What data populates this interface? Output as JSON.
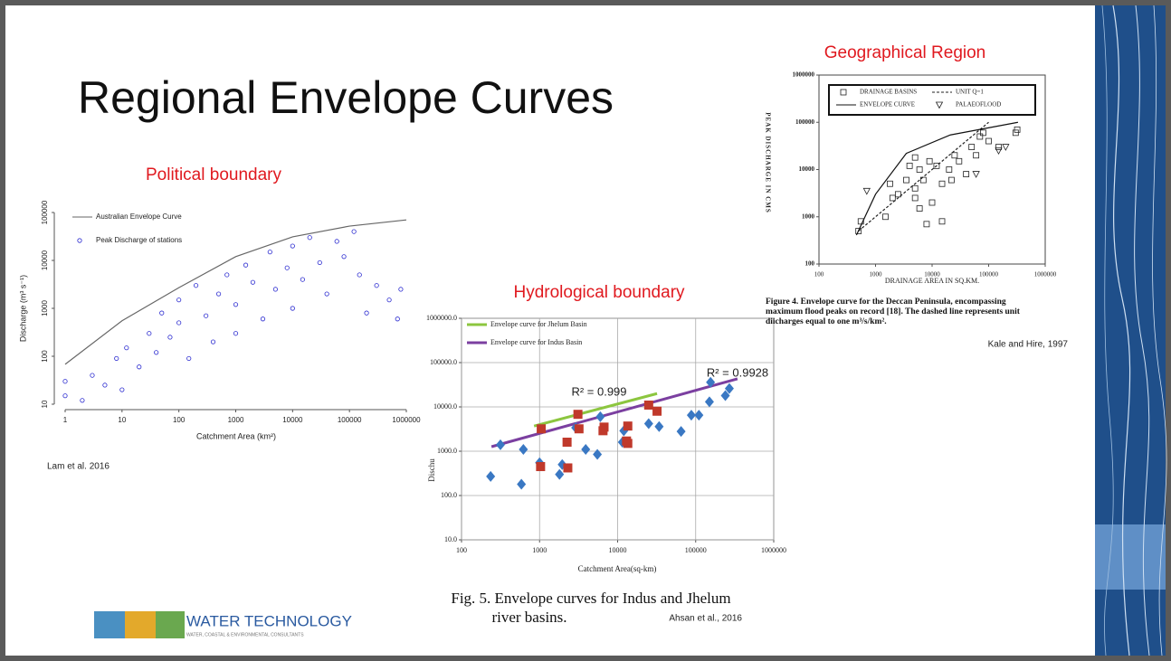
{
  "slide": {
    "title": "Regional Envelope Curves",
    "logo": {
      "brand": "WATER TECHNOLOGY",
      "tagline": "WATER, COASTAL & ENVIRONMENTAL CONSULTANTS"
    }
  },
  "chart_data": [
    {
      "type": "scatter",
      "title": "Political boundary",
      "x_label": "Catchment Area (km²)",
      "y_label": "Discharge (m³ s⁻¹)",
      "log_x": true,
      "log_y": true,
      "grid": false,
      "xlim": [
        1,
        1000000
      ],
      "ylim": [
        10,
        100000
      ],
      "xticks": [
        1,
        10,
        100,
        1000,
        10000,
        100000,
        1000000
      ],
      "yticks": [
        10,
        100,
        1000,
        10000,
        100000
      ],
      "source": "Lam et al. 2016",
      "series": [
        {
          "name": "Australian Envelope Curve",
          "type": "line",
          "color": "#666666",
          "x": [
            1,
            10,
            100,
            1000,
            10000,
            100000,
            1000000
          ],
          "values": [
            68,
            550,
            2700,
            12000,
            31000,
            52000,
            70000
          ]
        },
        {
          "name": "Peak Discharge of stations",
          "type": "scatter",
          "marker": "circle-open",
          "color": "#2b2bd0",
          "x": [
            1,
            1,
            2,
            3,
            5,
            8,
            10,
            12,
            20,
            30,
            40,
            50,
            70,
            100,
            100,
            150,
            200,
            300,
            400,
            500,
            700,
            1000,
            1000,
            1500,
            2000,
            3000,
            4000,
            5000,
            8000,
            10000,
            10000,
            15000,
            20000,
            30000,
            40000,
            60000,
            80000,
            120000,
            150000,
            200000,
            300000,
            500000,
            700000,
            800000
          ],
          "values": [
            15,
            30,
            12,
            40,
            25,
            90,
            20,
            150,
            60,
            300,
            120,
            800,
            250,
            500,
            1500,
            90,
            3000,
            700,
            200,
            2000,
            5000,
            1200,
            300,
            8000,
            3500,
            600,
            15000,
            2500,
            7000,
            1000,
            20000,
            4000,
            30000,
            9000,
            2000,
            25000,
            12000,
            40000,
            5000,
            800,
            3000,
            1500,
            600,
            2500
          ]
        }
      ]
    },
    {
      "type": "scatter",
      "title": "Hydrological boundary",
      "x_label": "Catchment Area(sq-km)",
      "y_label": "Dischu",
      "log_x": true,
      "log_y": true,
      "grid": true,
      "xlim": [
        100,
        1000000
      ],
      "ylim": [
        10,
        1000000
      ],
      "xticks": [
        100,
        1000,
        10000,
        100000,
        1000000
      ],
      "yticks": [
        {
          "value": 10,
          "label": "10.0"
        },
        {
          "value": 100,
          "label": "100.0"
        },
        {
          "value": 1000,
          "label": "1000.0"
        },
        {
          "value": 10000,
          "label": "10000.0"
        },
        {
          "value": 100000,
          "label": "100000.0"
        },
        {
          "value": 1000000,
          "label": "1000000.0"
        }
      ],
      "annotations": [
        "R² = 0.999",
        "R² = 0.9928"
      ],
      "caption": [
        "Fig. 5.  Envelope curves for Indus and Jhelum",
        "river basins."
      ],
      "source": "Ahsan et al., 2016",
      "series": [
        {
          "name": "Envelope curve for Jhelum Basin",
          "type": "line",
          "color": "#8cc63f",
          "x": [
            850,
            32000
          ],
          "values": [
            3700,
            20000
          ]
        },
        {
          "name": "Envelope curve for Indus Basin",
          "type": "line",
          "color": "#7b3fa0",
          "x": [
            242,
            343000
          ],
          "values": [
            1265,
            43000
          ]
        },
        {
          "name": "Indus stations",
          "type": "scatter",
          "marker": "diamond",
          "color": "#3a78c3",
          "in_legend": false,
          "x": [
            236,
            315,
            585,
            620,
            1000,
            1800,
            1950,
            2900,
            3900,
            5500,
            6000,
            11500,
            12000,
            25000,
            34000,
            65000,
            88000,
            110000,
            150000,
            155000,
            240000,
            270000
          ],
          "values": [
            270,
            1400,
            180,
            1100,
            550,
            300,
            500,
            3400,
            1100,
            850,
            6000,
            1600,
            2900,
            4200,
            3600,
            2800,
            6500,
            6500,
            13000,
            36000,
            18000,
            26000
          ]
        },
        {
          "name": "Jhelum stations",
          "type": "scatter",
          "marker": "square",
          "color": "#c0392b",
          "in_legend": false,
          "x": [
            1050,
            1030,
            2250,
            2300,
            3100,
            3200,
            6700,
            6500,
            13500,
            13000,
            13500,
            25000,
            32000
          ],
          "values": [
            3200,
            450,
            1600,
            420,
            6800,
            3200,
            3500,
            2900,
            3700,
            1700,
            1500,
            11000,
            8000
          ]
        }
      ]
    },
    {
      "type": "scatter",
      "title": "Geographical Region",
      "x_label": "DRAINAGE AREA IN SQ.KM.",
      "y_label": "PEAK DISCHARGE IN CMS",
      "log_x": true,
      "log_y": true,
      "grid": false,
      "xlim": [
        100,
        1000000
      ],
      "ylim": [
        100,
        1000000
      ],
      "xticks": [
        100,
        1000,
        10000,
        100000,
        1000000
      ],
      "yticks": [
        100,
        1000,
        10000,
        100000,
        1000000
      ],
      "caption": [
        "Figure 4. Envelope curve for the Deccan  Peninsula, encompassing",
        "maximum flood peaks on record [18]. The dashed line represents unit",
        "diicharges equal to one m³/s/km²."
      ],
      "source": "Kale and Hire, 1997",
      "series": [
        {
          "name": "DRAINAGE BASINS",
          "type": "scatter",
          "marker": "square-open",
          "color": "#222222",
          "x": [
            500,
            550,
            1500,
            1800,
            2000,
            2500,
            5000,
            3500,
            4000,
            5000,
            5000,
            6000,
            6000,
            7000,
            8000,
            9000,
            10000,
            12000,
            15000,
            15000,
            20000,
            22000,
            25000,
            30000,
            40000,
            50000,
            60000,
            70000,
            80000,
            100000,
            150000,
            300000,
            320000
          ],
          "values": [
            500,
            800,
            1000,
            5000,
            2500,
            3000,
            18000,
            6000,
            12000,
            4000,
            2500,
            10000,
            1500,
            6000,
            700,
            15000,
            2000,
            12000,
            5000,
            800,
            10000,
            6000,
            20000,
            15000,
            8000,
            30000,
            20000,
            50000,
            60000,
            40000,
            30000,
            60000,
            70000
          ]
        },
        {
          "name": "UNIT Q=1",
          "type": "line",
          "style": "dashed",
          "color": "#222222",
          "x": [
            500,
            100000
          ],
          "values": [
            500,
            100000
          ]
        },
        {
          "name": "ENVELOPE CURVE",
          "type": "line",
          "color": "#111111",
          "x": [
            460,
            1000,
            3500,
            21000,
            330000
          ],
          "values": [
            410,
            3000,
            22000,
            54000,
            100000
          ]
        },
        {
          "name": "PALAEOFLOOD",
          "type": "scatter",
          "marker": "triangle-open",
          "color": "#222222",
          "x": [
            700,
            60000,
            150000,
            200000
          ],
          "values": [
            3500,
            8000,
            25000,
            30000
          ]
        }
      ]
    }
  ]
}
